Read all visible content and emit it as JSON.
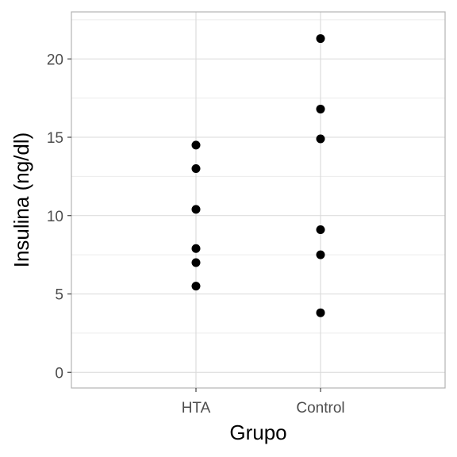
{
  "chart_data": {
    "type": "scatter",
    "title": "",
    "xlabel": "Grupo",
    "ylabel": "Insulina (ng/dl)",
    "categories": [
      "HTA",
      "Control"
    ],
    "y_ticks": [
      "0",
      "5",
      "10",
      "15",
      "20"
    ],
    "ylim": [
      -1,
      23
    ],
    "grid": true,
    "legend": "none",
    "series": [
      {
        "category": "HTA",
        "values": [
          14.5,
          13.0,
          10.4,
          7.9,
          7.0,
          5.5
        ]
      },
      {
        "category": "Control",
        "values": [
          21.3,
          16.8,
          14.9,
          9.1,
          7.5,
          3.8
        ]
      }
    ],
    "colors": {
      "point": "#000000",
      "grid_major": "#d9d9d9",
      "grid_minor": "#ececec",
      "panel_border": "#b3b3b3",
      "tick_text": "#4d4d4d"
    }
  }
}
